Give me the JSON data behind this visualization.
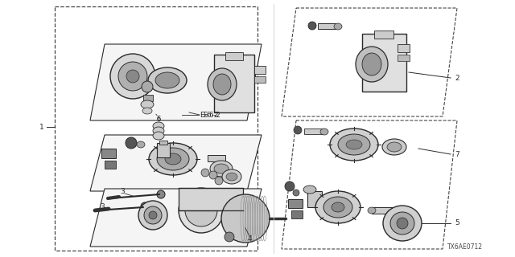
{
  "bg_color": "#ffffff",
  "line_color": "#2a2a2a",
  "dashed_color": "#444444",
  "gray_light": "#cccccc",
  "gray_mid": "#999999",
  "gray_dark": "#555555",
  "diagram_label": "TX6AE0712",
  "figsize": [
    6.4,
    3.2
  ],
  "dpi": 100
}
